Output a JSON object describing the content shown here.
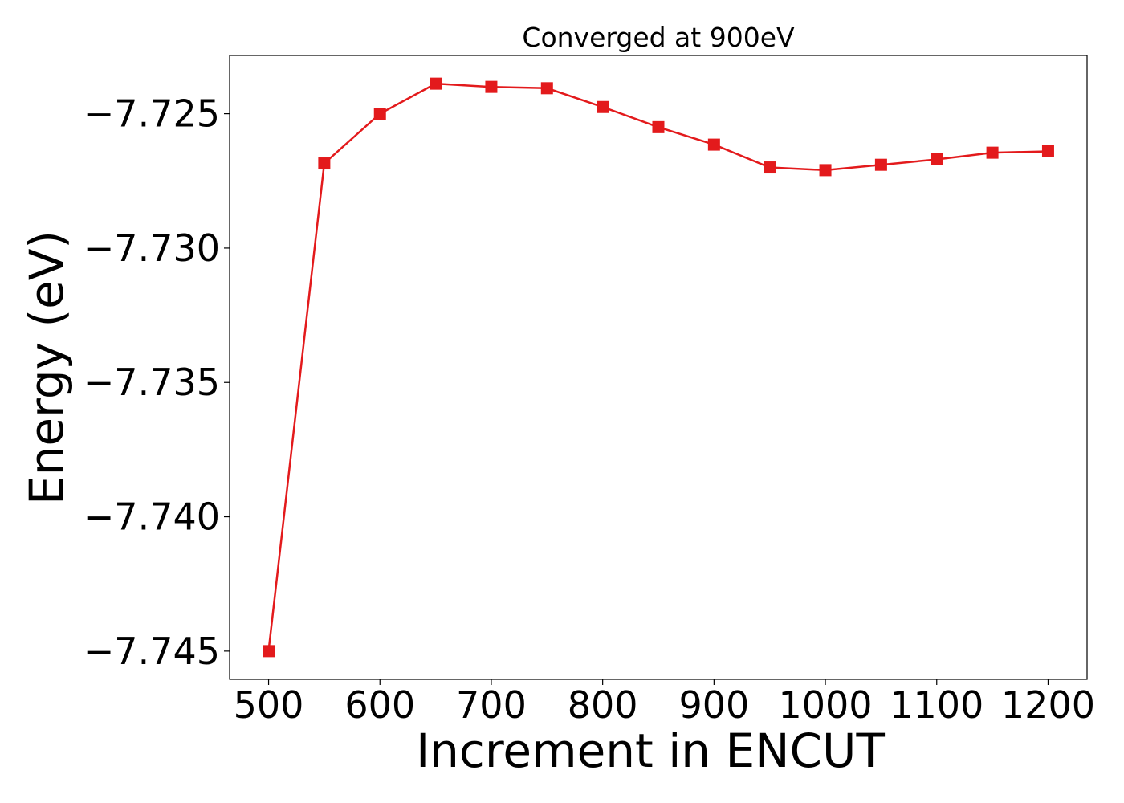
{
  "chart_data": {
    "type": "line",
    "title": "Converged at 900eV",
    "xlabel": "Increment in ENCUT",
    "ylabel": "Energy (eV)",
    "x": [
      500,
      550,
      600,
      650,
      700,
      750,
      800,
      850,
      900,
      950,
      1000,
      1050,
      1100,
      1150,
      1200
    ],
    "series": [
      {
        "values": [
          -7.745,
          -7.72685,
          -7.725,
          -7.72388,
          -7.724,
          -7.72405,
          -7.72475,
          -7.7255,
          -7.72615,
          -7.727,
          -7.7271,
          -7.7269,
          -7.7267,
          -7.72645,
          -7.7264
        ],
        "color": "#e31a1c",
        "marker": "square"
      }
    ],
    "xlim": [
      465,
      1235
    ],
    "ylim": [
      -7.74605,
      -7.72283
    ],
    "xticks": [
      500,
      600,
      700,
      800,
      900,
      1000,
      1100,
      1200
    ],
    "xtick_labels": [
      "500",
      "600",
      "700",
      "800",
      "900",
      "1000",
      "1100",
      "1200"
    ],
    "yticks": [
      -7.725,
      -7.73,
      -7.735,
      -7.74,
      -7.745
    ],
    "ytick_labels": [
      "−7.725",
      "−7.730",
      "−7.735",
      "−7.740",
      "−7.745"
    ],
    "grid": false,
    "legend": "none"
  }
}
